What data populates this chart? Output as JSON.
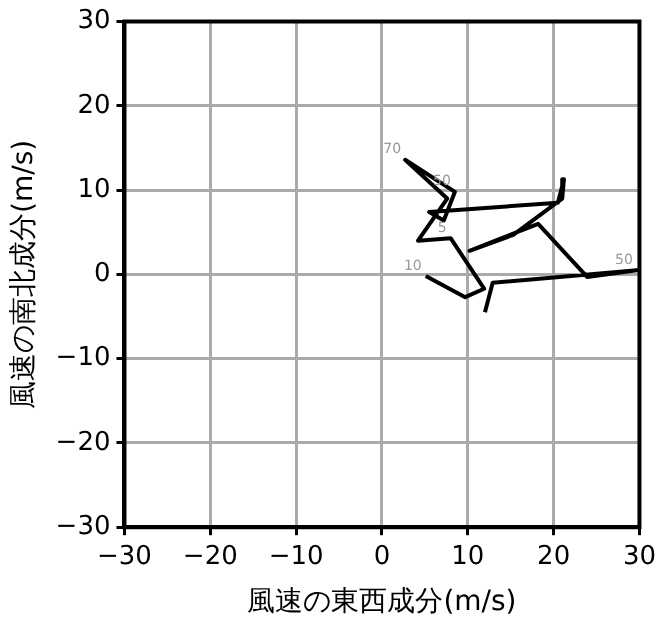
{
  "chart_data": {
    "type": "line",
    "xlabel": "風速の東西成分(m/s)",
    "ylabel": "風速の南北成分(m/s)",
    "x": [
      5.1,
      9.7,
      11.9,
      8.0,
      4.2,
      7.6,
      2.7,
      8.5,
      7.2,
      5.5,
      20.5,
      21.2,
      21.0,
      15.3,
      10.2,
      18.2,
      23.9,
      29.7,
      12.9,
      12.0
    ],
    "series": [
      {
        "color": "#000000",
        "values": [
          -0.2,
          -2.7,
          -1.7,
          4.3,
          4.0,
          9.0,
          13.6,
          9.8,
          6.4,
          7.4,
          8.5,
          11.3,
          9.0,
          4.7,
          2.8,
          6.0,
          -0.3,
          0.5,
          -1.0,
          -4.5
        ]
      }
    ],
    "annotations": [
      {
        "text": "10",
        "x": 5.1,
        "y": -0.2
      },
      {
        "text": "70",
        "x": 2.7,
        "y": 13.6
      },
      {
        "text": "50",
        "x": 8.5,
        "y": 9.8
      },
      {
        "text": "5",
        "x": 8.0,
        "y": 4.3
      },
      {
        "text": "50",
        "x": 29.7,
        "y": 0.5
      }
    ],
    "xlim": [
      -30,
      30
    ],
    "ylim": [
      -30,
      30
    ],
    "xticks": [
      -30,
      -20,
      -10,
      0,
      10,
      20,
      30
    ],
    "yticks": [
      -30,
      -20,
      -10,
      0,
      10,
      20,
      30
    ],
    "grid": true,
    "marker": "none",
    "line_style": "solid",
    "legend": false
  }
}
